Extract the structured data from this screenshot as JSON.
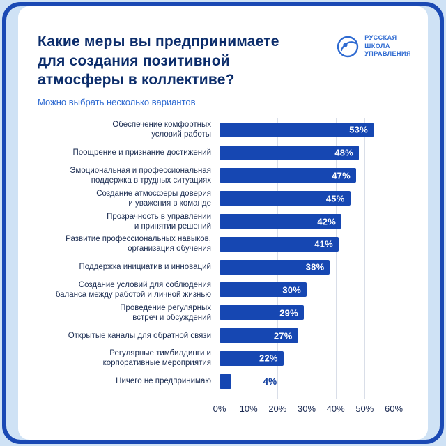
{
  "page": {
    "title": "Какие меры вы предпринимаете\nдля создания позитивной\nатмосферы в коллективе?",
    "subtitle": "Можно выбрать несколько вариантов",
    "logo": {
      "icon": "globe-logo-icon",
      "text": "РУССКАЯ\nШКОЛА\nУПРАВЛЕНИЯ"
    },
    "colors": {
      "background": "#cfe2f5",
      "frame_border": "#1a49b4",
      "card": "#ffffff",
      "bar": "#1647b2",
      "title_text": "#0c2d6b",
      "subtitle_text": "#2e6ad1",
      "gridline": "#d9dee8",
      "axis_text": "#1b2a52",
      "value_label_inside": "#ffffff",
      "value_label_outside": "#123f9e"
    }
  },
  "chart_data": {
    "type": "bar",
    "orientation": "horizontal",
    "title": "Какие меры вы предпринимаете для создания позитивной атмосферы в коллективе?",
    "subtitle": "Можно выбрать несколько вариантов",
    "categories": [
      "Обеспечение комфортных\nусловий работы",
      "Поощрение и признание достижений",
      "Эмоциональная и профессиональная\nподдержка в трудных ситуациях",
      "Создание атмосферы доверия\nи уважения в команде",
      "Прозрачность в управлении\nи принятии решений",
      "Развитие профессиональных навыков,\nорганизация обучения",
      "Поддержка инициатив и инноваций",
      "Создание условий для соблюдения\nбаланса между работой и личной жизнью",
      "Проведение регулярных\nвстреч и обсуждений",
      "Открытые каналы для обратной связи",
      "Регулярные тимбилдинги и\nкорпоративные мероприятия",
      "Ничего не предпринимаю"
    ],
    "values": [
      53,
      48,
      47,
      45,
      42,
      41,
      38,
      30,
      29,
      27,
      22,
      4
    ],
    "value_labels": [
      "53%",
      "48%",
      "47%",
      "45%",
      "42%",
      "41%",
      "38%",
      "30%",
      "29%",
      "27%",
      "22%",
      "4%"
    ],
    "x_ticks": [
      "0%",
      "10%",
      "20%",
      "30%",
      "40%",
      "50%",
      "60%"
    ],
    "xlim": [
      0,
      60
    ],
    "grid": true,
    "legend": false
  }
}
